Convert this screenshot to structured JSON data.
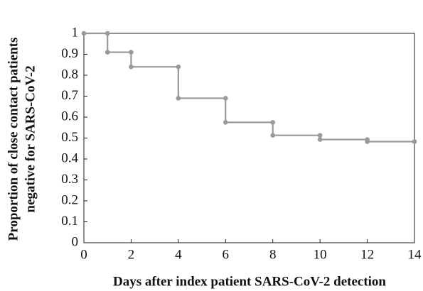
{
  "chart_data": {
    "type": "line",
    "xlabel": "Days after index patient SARS-CoV-2 detection",
    "ylabel": [
      "Proportion of close contact patients",
      "negative for SARS-CoV-2"
    ],
    "x": [
      0,
      1,
      1,
      2,
      2,
      4,
      4,
      6,
      6,
      8,
      8,
      10,
      10,
      12,
      12,
      14
    ],
    "series": [
      {
        "color": "#999999",
        "values": [
          1,
          1,
          0.91,
          0.91,
          0.84,
          0.84,
          0.69,
          0.69,
          0.575,
          0.575,
          0.513,
          0.513,
          0.493,
          0.493,
          0.483,
          0.483
        ]
      }
    ],
    "markers": true,
    "xlim": [
      0,
      14
    ],
    "xticks": [
      0,
      2,
      4,
      6,
      8,
      10,
      12,
      14
    ],
    "ylim": [
      0,
      1
    ],
    "yticks": [
      0,
      0.1,
      0.2,
      0.3,
      0.4,
      0.5,
      0.6,
      0.7,
      0.8,
      0.9,
      1
    ],
    "grid": false
  }
}
